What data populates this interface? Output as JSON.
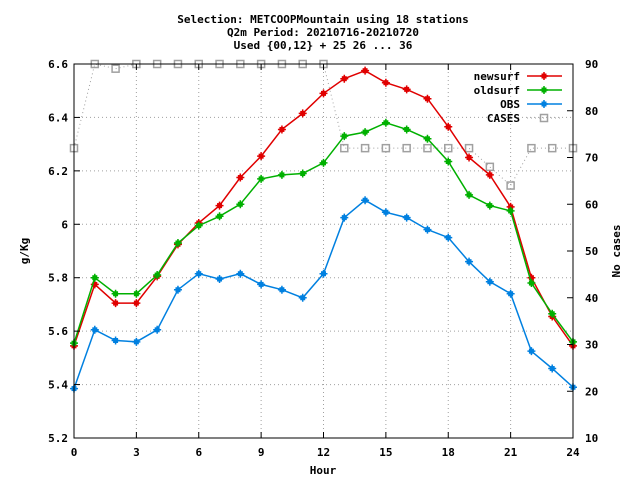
{
  "chart_data": {
    "type": "line",
    "title_lines": [
      "Selection: METCOOPMountain using    18 stations",
      "Q2m   Period: 20210716-20210720",
      "Used {00,12} + 25 26 ... 36"
    ],
    "xlabel": "Hour",
    "ylabel": "g/Kg",
    "y2label": "No cases",
    "xlim": [
      0,
      24
    ],
    "ylim": [
      5.2,
      6.6
    ],
    "y2lim": [
      10,
      90
    ],
    "xticks": [
      0,
      3,
      6,
      9,
      12,
      15,
      18,
      21,
      24
    ],
    "yticks": [
      5.2,
      5.4,
      5.6,
      5.8,
      6,
      6.2,
      6.4,
      6.6
    ],
    "ytick_labels": [
      "5.2",
      "5.4",
      "5.6",
      "5.8",
      "6",
      "6.2",
      "6.4",
      "6.6"
    ],
    "y2ticks": [
      10,
      20,
      30,
      40,
      50,
      60,
      70,
      80,
      90
    ],
    "grid": true,
    "legend_position": "top-right",
    "x": [
      0,
      1,
      2,
      3,
      4,
      5,
      6,
      7,
      8,
      9,
      10,
      11,
      12,
      13,
      14,
      15,
      16,
      17,
      18,
      19,
      20,
      21,
      22,
      23,
      24
    ],
    "series": [
      {
        "name": "newsurf",
        "axis": "left",
        "color": "#e00000",
        "marker": "plus",
        "values": [
          5.545,
          5.775,
          5.705,
          5.705,
          5.805,
          5.925,
          6.005,
          6.07,
          6.175,
          6.255,
          6.355,
          6.415,
          6.49,
          6.545,
          6.575,
          6.53,
          6.505,
          6.47,
          6.365,
          6.25,
          6.185,
          6.065,
          5.8,
          5.655,
          5.545
        ]
      },
      {
        "name": "oldsurf",
        "axis": "left",
        "color": "#00b000",
        "marker": "plus",
        "values": [
          5.555,
          5.8,
          5.74,
          5.74,
          5.81,
          5.93,
          5.995,
          6.03,
          6.075,
          6.17,
          6.185,
          6.19,
          6.23,
          6.33,
          6.345,
          6.38,
          6.355,
          6.32,
          6.235,
          6.11,
          6.07,
          6.05,
          5.78,
          5.665,
          5.56
        ]
      },
      {
        "name": "OBS",
        "axis": "left",
        "color": "#0080e0",
        "marker": "plus",
        "values": [
          5.385,
          5.605,
          5.565,
          5.56,
          5.605,
          5.755,
          5.815,
          5.795,
          5.815,
          5.775,
          5.755,
          5.725,
          5.815,
          6.025,
          6.09,
          6.045,
          6.025,
          5.98,
          5.95,
          5.86,
          5.785,
          5.74,
          5.525,
          5.46,
          5.39
        ]
      },
      {
        "name": "CASES",
        "axis": "right",
        "color": "#a0a0a0",
        "marker": "square",
        "dotted": true,
        "values": [
          72,
          90,
          89,
          90,
          90,
          90,
          90,
          90,
          90,
          90,
          90,
          90,
          90,
          72,
          72,
          72,
          72,
          72,
          72,
          72,
          68,
          64,
          72,
          72,
          72
        ]
      }
    ]
  }
}
